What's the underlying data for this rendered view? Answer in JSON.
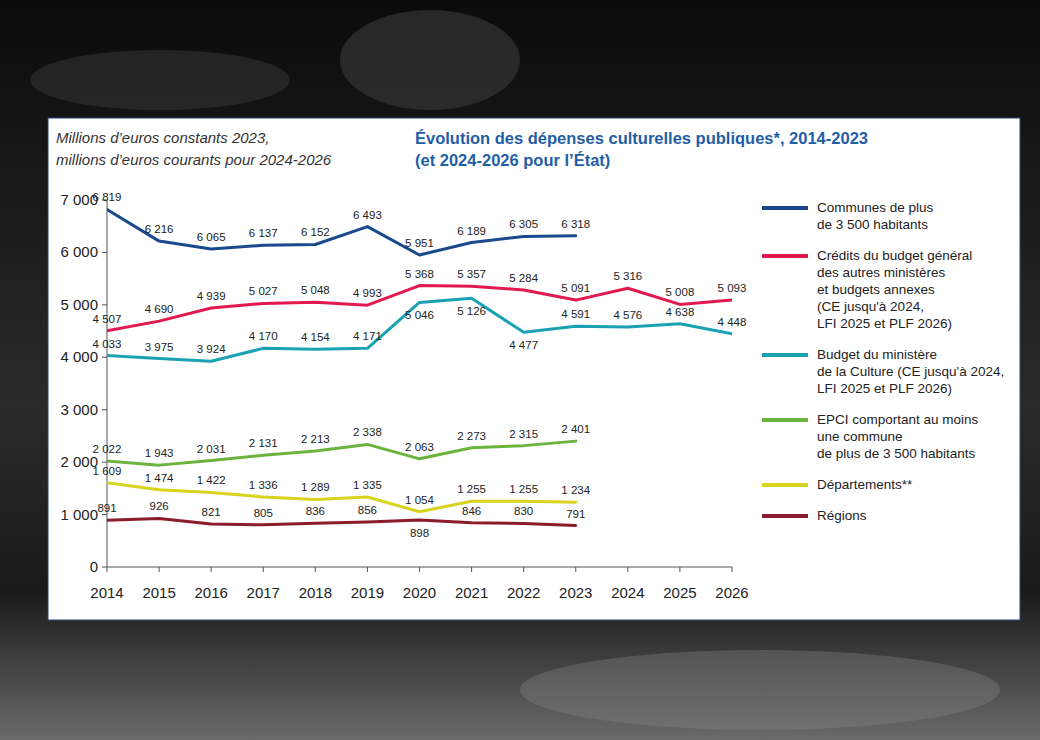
{
  "chart_data": {
    "type": "line",
    "title": "Évolution des dépenses culturelles publiques*, 2014-2023\n(et 2024-2026 pour l’État)",
    "subtitle": "Millions d’euros constants 2023,\nmillions d’euros courants pour 2024-2026",
    "x": [
      2014,
      2015,
      2016,
      2017,
      2018,
      2019,
      2020,
      2021,
      2022,
      2023,
      2024,
      2025,
      2026
    ],
    "xlim": [
      2014,
      2026
    ],
    "xticks": [
      2014,
      2015,
      2016,
      2017,
      2018,
      2019,
      2020,
      2021,
      2022,
      2023,
      2024,
      2025,
      2026
    ],
    "ylim": [
      0,
      7000
    ],
    "yticks": [
      0,
      {
        "value": 1000,
        "label": "1 000"
      },
      {
        "value": 2000,
        "label": "2 000"
      },
      {
        "value": 3000,
        "label": "3 000"
      },
      {
        "value": 4000,
        "label": "4 000"
      },
      {
        "value": 5000,
        "label": "5 000"
      },
      {
        "value": 6000,
        "label": "6 000"
      },
      {
        "value": 7000,
        "label": "7 000"
      }
    ],
    "grid": false,
    "legend": "right",
    "data_labels": true,
    "marker": "none",
    "series": [
      {
        "name": "Communes de plus\nde 3 500 habitants",
        "color": "#1b4a8c",
        "values": [
          6819,
          6216,
          6065,
          6137,
          6152,
          6493,
          5951,
          6189,
          6305,
          6318,
          null,
          null,
          null
        ],
        "value_labels": [
          "6 819",
          "6 216",
          "6 065",
          "6 137",
          "6 152",
          "6 493",
          "5 951",
          "6 189",
          "6 305",
          "6 318",
          null,
          null,
          null
        ]
      },
      {
        "name": "Crédits du budget général\ndes autres ministères\net budgets annexes\n(CE jusqu'à 2024,\nLFI 2025 et PLF 2026)",
        "color": "#e2194f",
        "values": [
          4507,
          4690,
          4939,
          5027,
          5048,
          4993,
          5368,
          5357,
          5284,
          5091,
          5316,
          5008,
          5093
        ],
        "value_labels": [
          "4 507",
          "4 690",
          "4 939",
          "5 027",
          "5 048",
          "4 993",
          "5 368",
          "5 357",
          "5 284",
          "5 091",
          "5 316",
          "5 008",
          "5 093"
        ]
      },
      {
        "name": "Budget du ministère\nde la Culture (CE jusqu'à 2024,\nLFI 2025 et PLF 2026)",
        "color": "#1aa2b4",
        "values": [
          4033,
          3975,
          3924,
          4170,
          4154,
          4171,
          5046,
          5126,
          4477,
          4591,
          4576,
          4638,
          4448
        ],
        "value_labels": [
          "4 033",
          "3 975",
          "3 924",
          "4 170",
          "4 154",
          "4 171",
          "5 046",
          "5 126",
          "4 477",
          "4 591",
          "4 576",
          "4 638",
          "4 448"
        ]
      },
      {
        "name": "EPCI comportant au moins\nune commune\nde plus de 3 500 habitants",
        "color": "#6ab43e",
        "values": [
          2022,
          1943,
          2031,
          2131,
          2213,
          2338,
          2063,
          2273,
          2315,
          2401,
          null,
          null,
          null
        ],
        "value_labels": [
          "2 022",
          "1 943",
          "2 031",
          "2 131",
          "2 213",
          "2 338",
          "2 063",
          "2 273",
          "2 315",
          "2 401",
          null,
          null,
          null
        ]
      },
      {
        "name": "Départements**",
        "color": "#d8d31c",
        "values": [
          1609,
          1474,
          1422,
          1336,
          1289,
          1335,
          1054,
          1255,
          1255,
          1234,
          null,
          null,
          null
        ],
        "value_labels": [
          "1 609",
          "1 474",
          "1 422",
          "1 336",
          "1 289",
          "1 335",
          "1 054",
          "1 255",
          "1 255",
          "1 234",
          null,
          null,
          null
        ]
      },
      {
        "name": "Régions",
        "color": "#8a1c2b",
        "values": [
          891,
          926,
          821,
          805,
          836,
          856,
          898,
          846,
          830,
          791,
          null,
          null,
          null
        ]
      }
    ]
  }
}
